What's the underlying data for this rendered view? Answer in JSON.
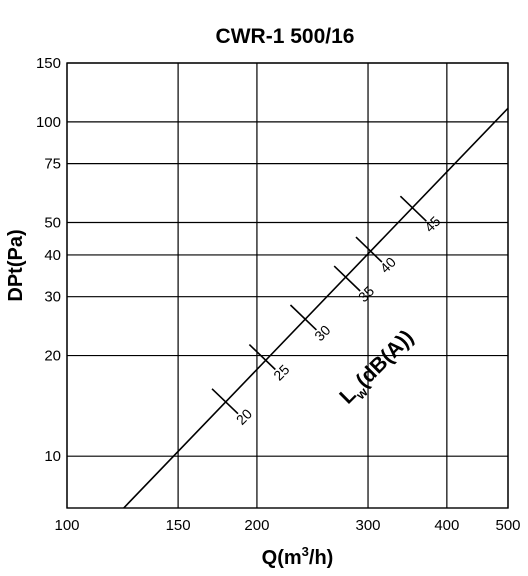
{
  "chart_data": {
    "type": "line",
    "title": "CWR-1 500/16",
    "xlabel": "Q(m³/h)",
    "ylabel": "DPt(Pa)",
    "x_scale": "log",
    "y_scale": "log",
    "xlim": [
      100,
      500
    ],
    "ylim": [
      7,
      150
    ],
    "x_ticks": [
      100,
      150,
      200,
      300,
      400,
      500
    ],
    "y_ticks": [
      10,
      20,
      30,
      40,
      50,
      75,
      100,
      150
    ],
    "grid": true,
    "series": [
      {
        "x": [
          123,
          505
        ],
        "y": [
          7,
          112
        ]
      }
    ],
    "sound_power": {
      "title_main": "L",
      "title_sub": "w",
      "title_rest": "(dB(A))",
      "marks": [
        {
          "label": "20",
          "x": 178,
          "y": 14.6
        },
        {
          "label": "25",
          "x": 204,
          "y": 19.8
        },
        {
          "label": "30",
          "x": 237,
          "y": 26.0
        },
        {
          "label": "35",
          "x": 278,
          "y": 34.0
        },
        {
          "label": "40",
          "x": 301,
          "y": 41.5
        },
        {
          "label": "45",
          "x": 354,
          "y": 55.0
        }
      ]
    }
  }
}
